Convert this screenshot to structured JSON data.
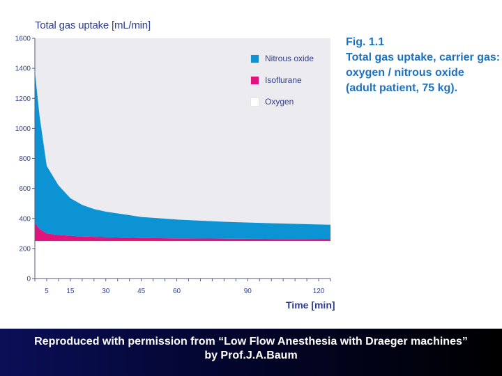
{
  "chart_data": {
    "type": "area",
    "title": "",
    "ylabel": "Total gas uptake [mL/min]",
    "xlabel": "Time [min]",
    "ylim": [
      0,
      1600
    ],
    "xlim": [
      0,
      125
    ],
    "yticks": [
      0,
      200,
      400,
      600,
      800,
      1000,
      1200,
      1400,
      1600
    ],
    "xticks": [
      5,
      15,
      30,
      45,
      60,
      90,
      120
    ],
    "stacked": true,
    "legend_position": "top-right",
    "grid": false,
    "x": [
      0,
      2,
      5,
      10,
      15,
      20,
      25,
      30,
      40,
      45,
      60,
      80,
      90,
      100,
      120,
      125
    ],
    "series": [
      {
        "name": "Oxygen",
        "color": "#ffffff",
        "values": [
          250,
          250,
          250,
          250,
          250,
          250,
          250,
          250,
          250,
          250,
          250,
          250,
          250,
          250,
          250,
          250
        ]
      },
      {
        "name": "Isoflurane",
        "color": "#e0157c",
        "values": [
          120,
          80,
          50,
          40,
          35,
          30,
          28,
          25,
          22,
          20,
          18,
          16,
          15,
          14,
          12,
          12
        ]
      },
      {
        "name": "Nitrous oxide",
        "color": "#0b93d4",
        "values": [
          1010,
          750,
          450,
          330,
          250,
          210,
          185,
          170,
          150,
          140,
          125,
          112,
          108,
          104,
          98,
          96
        ]
      }
    ]
  },
  "legend_items": [
    {
      "label": "Nitrous oxide",
      "color": "#0b93d4"
    },
    {
      "label": "Isoflurane",
      "color": "#e0157c"
    },
    {
      "label": "Oxygen",
      "color": "#ffffff"
    }
  ],
  "caption": {
    "line1": "Fig. 1.1",
    "line2": "Total gas uptake, carrier gas:",
    "line3": "oxygen / nitrous oxide",
    "line4": "(adult patient, 75 kg)."
  },
  "footer": {
    "text": "Reproduced with permission from “Low Flow Anesthesia with Draeger machines” by Prof.J.A.Baum"
  },
  "colors": {
    "plot_background": "#ececf0",
    "axis_text": "#2f3e8a",
    "caption_text": "#1c72c0"
  }
}
